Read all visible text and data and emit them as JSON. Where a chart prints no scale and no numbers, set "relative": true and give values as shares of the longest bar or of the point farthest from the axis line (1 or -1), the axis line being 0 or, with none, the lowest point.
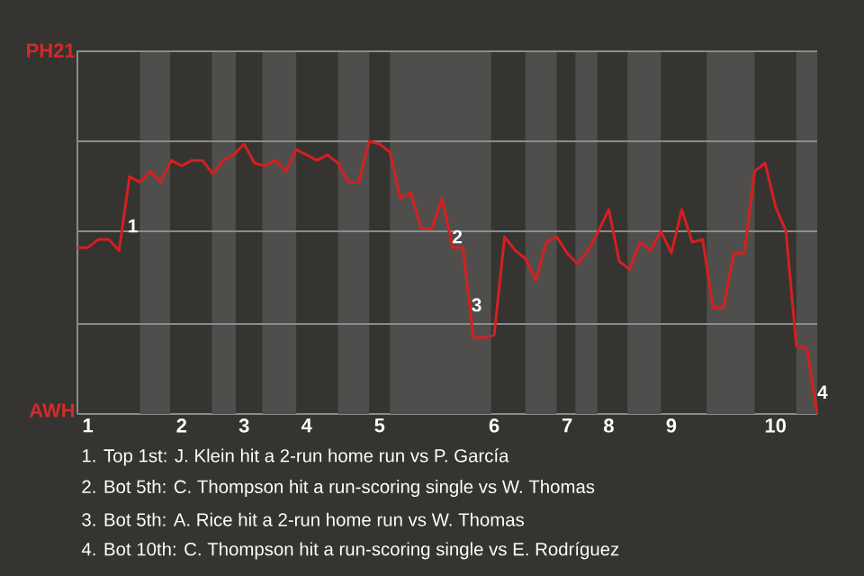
{
  "chart_data": {
    "type": "line",
    "relative": true,
    "categories": [
      null,
      "1",
      null,
      null,
      null,
      null,
      null,
      null,
      null,
      null,
      "2",
      null,
      null,
      null,
      null,
      null,
      "3",
      null,
      null,
      null,
      null,
      null,
      "4",
      null,
      null,
      null,
      null,
      null,
      null,
      "5",
      null,
      null,
      null,
      null,
      null,
      null,
      null,
      null,
      null,
      null,
      "6",
      null,
      null,
      null,
      null,
      null,
      null,
      "7",
      null,
      null,
      null,
      "8",
      null,
      null,
      null,
      null,
      null,
      "9",
      null,
      null,
      null,
      null,
      null,
      null,
      null,
      null,
      null,
      "10",
      null,
      null,
      null,
      null
    ],
    "marker": "none",
    "line_style": "solid",
    "ref_lines": [
      {
        "axis": "y",
        "value": 0.33,
        "color": "#8c8c8c"
      },
      {
        "axis": "y",
        "value": 0.67,
        "color": "#8c8c8c"
      },
      {
        "axis": "y",
        "value": 1,
        "color": "#8c8c8c"
      },
      {
        "axis": "y",
        "value": 1.33,
        "color": "#8c8c8c"
      }
    ],
    "series": [
      {
        "color": "#d42020",
        "values": [
          0.61,
          0.61,
          0.64,
          0.64,
          0.6,
          0.87,
          0.85,
          0.89,
          0.85,
          0.93,
          0.91,
          0.93,
          0.93,
          0.88,
          0.93,
          0.95,
          0.99,
          0.92,
          0.91,
          0.93,
          0.89,
          0.97,
          0.95,
          0.93,
          0.95,
          0.92,
          0.85,
          0.85,
          1,
          0.99,
          0.96,
          0.79,
          0.81,
          0.68,
          0.68,
          0.79,
          0.61,
          0.61,
          0.28,
          0.28,
          0.29,
          0.65,
          0.6,
          0.57,
          0.49,
          0.63,
          0.65,
          0.59,
          0.55,
          0.6,
          0.67,
          0.75,
          0.56,
          0.53,
          0.63,
          0.6,
          0.67,
          0.59,
          0.75,
          0.63,
          0.64,
          0.39,
          0.39,
          0.59,
          0.59,
          0.89,
          0.92,
          0.76,
          0.67,
          0.25,
          0.24,
          0
        ]
      }
    ],
    "annotations": [
      {
        "text": "1",
        "y": 0.69
      },
      {
        "text": "2",
        "y": 0.65
      },
      {
        "text": "3",
        "y": 0.4
      },
      {
        "text": "4",
        "y": 0.08
      },
      "PH21",
      "AWH",
      "1. Top 1st: J. Klein hit a 2-run home run vs P. García",
      "2. Bot 5th: C. Thompson hit a run-scoring single vs W. Thomas",
      "3. Bot 5th: A. Rice hit a 2-run home run vs W. Thomas",
      "4. Bot 10th: C. Thompson hit a run-scoring single vs E. Rodríguez"
    ]
  }
}
